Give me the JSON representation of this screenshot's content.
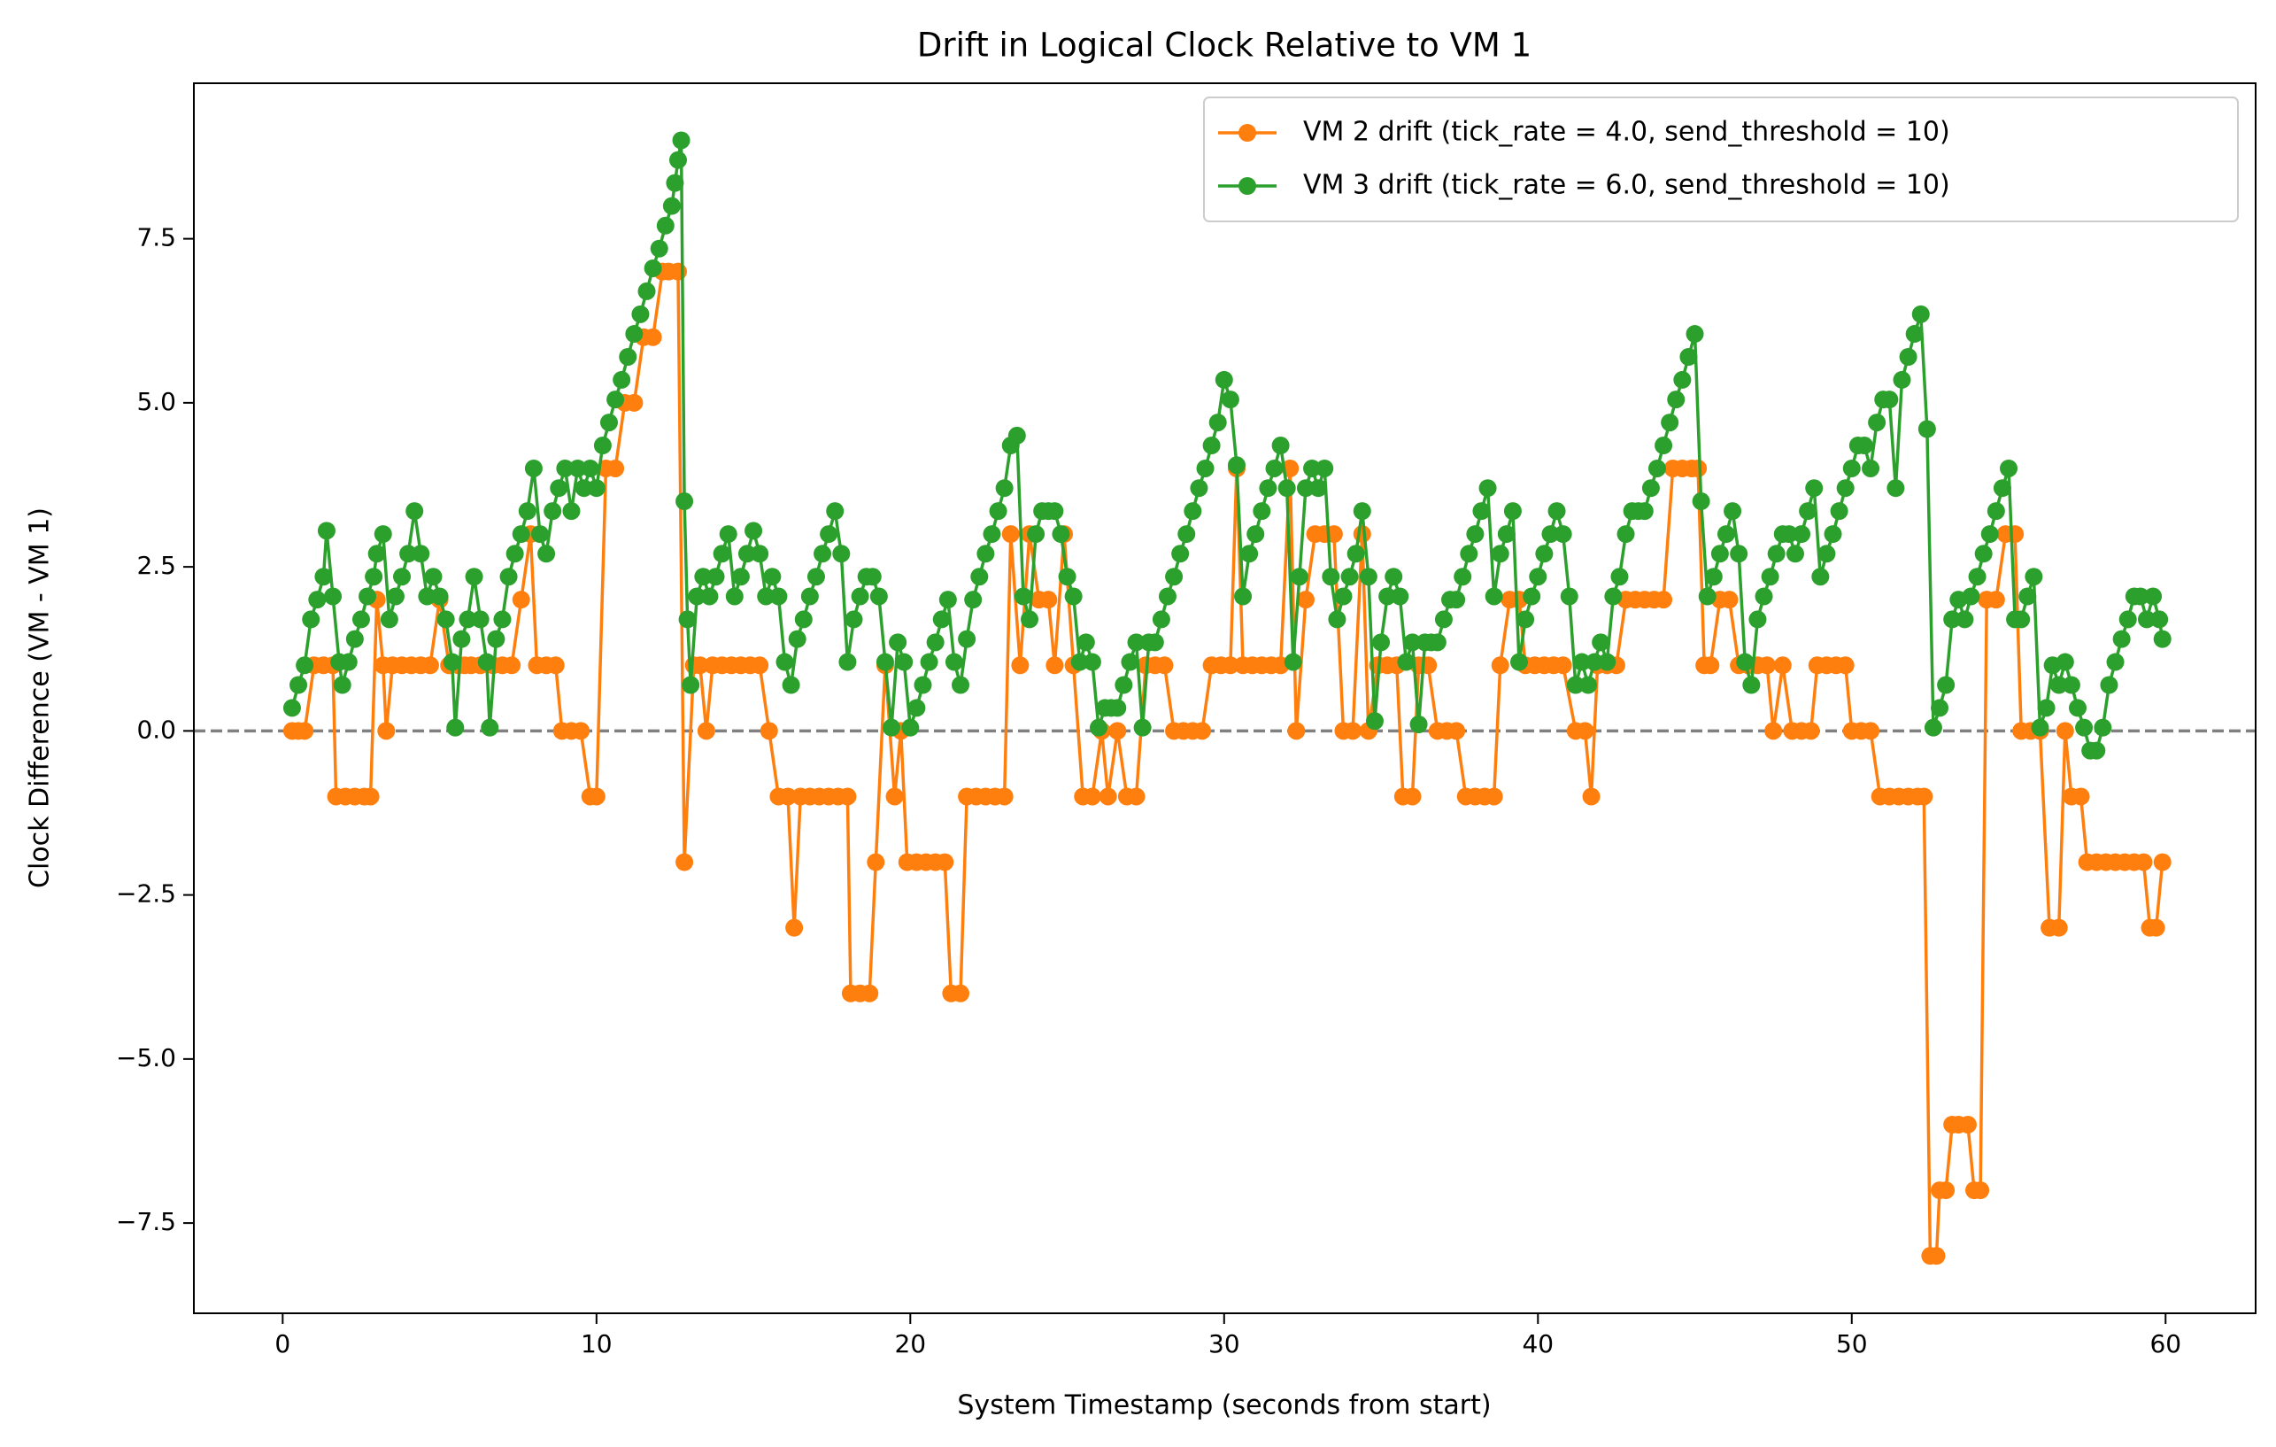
{
  "chart_data": {
    "type": "line",
    "title": "Drift in Logical Clock Relative to VM 1",
    "x_label": "System Timestamp (seconds from start)",
    "y_label": "Clock Difference (VM - VM 1)",
    "xlim": [
      -2.83,
      62.87
    ],
    "ylim": [
      -8.875,
      9.87
    ],
    "xticks": [
      0,
      10,
      20,
      30,
      40,
      50,
      60
    ],
    "yticks": [
      {
        "value": -7.5,
        "label": "−7.5"
      },
      {
        "value": -5,
        "label": "−5.0"
      },
      {
        "value": -2.5,
        "label": "−2.5"
      },
      {
        "value": 0,
        "label": "0.0"
      },
      2.5,
      {
        "value": 5,
        "label": "5.0"
      },
      7.5
    ],
    "legend": "upper right",
    "reference_line": {
      "y": 0,
      "color": "#808080",
      "style": "dashed"
    },
    "series": [
      {
        "name": "VM 2 drift (tick_rate = 4.0, send_threshold = 10)",
        "color": "#ff7f0e",
        "x": [
          0.3,
          0.5,
          0.7,
          1.0,
          1.3,
          1.6,
          1.7,
          2.0,
          2.3,
          2.6,
          2.8,
          3.0,
          3.2,
          3.3,
          3.5,
          3.8,
          4.1,
          4.4,
          4.7,
          5.0,
          5.3,
          5.6,
          5.8,
          6.0,
          6.3,
          6.7,
          7.0,
          7.3,
          7.6,
          7.9,
          8.1,
          8.4,
          8.7,
          8.9,
          9.2,
          9.5,
          9.8,
          10.0,
          10.3,
          10.6,
          10.9,
          11.2,
          11.5,
          11.8,
          12.1,
          12.3,
          12.6,
          12.8,
          13.1,
          13.3,
          13.5,
          13.7,
          14.0,
          14.3,
          14.6,
          14.9,
          15.2,
          15.5,
          15.8,
          16.1,
          16.3,
          16.5,
          16.8,
          17.1,
          17.4,
          17.7,
          18.0,
          18.1,
          18.4,
          18.7,
          18.9,
          19.2,
          19.5,
          19.7,
          19.9,
          20.2,
          20.5,
          20.8,
          21.1,
          21.3,
          21.6,
          21.8,
          22.1,
          22.4,
          22.7,
          23.0,
          23.2,
          23.5,
          23.8,
          24.1,
          24.4,
          24.6,
          24.9,
          25.2,
          25.5,
          25.8,
          26.1,
          26.3,
          26.6,
          26.9,
          27.2,
          27.5,
          27.8,
          28.1,
          28.4,
          28.7,
          29.0,
          29.3,
          29.6,
          29.9,
          30.2,
          30.4,
          30.6,
          30.9,
          31.2,
          31.5,
          31.8,
          32.1,
          32.3,
          32.6,
          32.9,
          33.2,
          33.5,
          33.8,
          34.1,
          34.4,
          34.6,
          34.9,
          35.2,
          35.5,
          35.7,
          36.0,
          36.2,
          36.5,
          36.8,
          37.1,
          37.4,
          37.7,
          38.0,
          38.3,
          38.6,
          38.8,
          39.1,
          39.4,
          39.6,
          39.9,
          40.2,
          40.5,
          40.8,
          41.2,
          41.5,
          41.7,
          41.9,
          42.2,
          42.5,
          42.8,
          43.1,
          43.4,
          43.7,
          44.0,
          44.3,
          44.6,
          44.9,
          45.1,
          45.3,
          45.5,
          45.8,
          46.1,
          46.4,
          46.7,
          47.0,
          47.3,
          47.5,
          47.8,
          48.1,
          48.4,
          48.7,
          48.9,
          49.2,
          49.5,
          49.8,
          50.0,
          50.3,
          50.6,
          50.9,
          51.2,
          51.5,
          51.8,
          52.1,
          52.3,
          52.5,
          52.7,
          52.8,
          53.0,
          53.2,
          53.4,
          53.7,
          53.9,
          54.1,
          54.3,
          54.6,
          54.9,
          55.2,
          55.4,
          55.7,
          56.0,
          56.3,
          56.6,
          56.8,
          57.0,
          57.3,
          57.5,
          57.8,
          58.1,
          58.4,
          58.7,
          59.0,
          59.3,
          59.5,
          59.7,
          59.9
        ],
        "values": [
          0,
          0,
          0,
          1,
          1,
          1,
          -1,
          -1,
          -1,
          -1,
          -1,
          2,
          1,
          0,
          1,
          1,
          1,
          1,
          1,
          2,
          1,
          1,
          1,
          1,
          1,
          1,
          1,
          1,
          2,
          3,
          1,
          1,
          1,
          0,
          0,
          0,
          -1,
          -1,
          4,
          4,
          5,
          5,
          6,
          6,
          7,
          7,
          7,
          -2,
          1,
          1,
          0,
          1,
          1,
          1,
          1,
          1,
          1,
          0,
          -1,
          -1,
          -3,
          -1,
          -1,
          -1,
          -1,
          -1,
          -1,
          -4,
          -4,
          -4,
          -2,
          1,
          -1,
          0,
          -2,
          -2,
          -2,
          -2,
          -2,
          -4,
          -4,
          -1,
          -1,
          -1,
          -1,
          -1,
          3,
          1,
          3,
          2,
          2,
          1,
          3,
          1,
          -1,
          -1,
          0,
          -1,
          0,
          -1,
          -1,
          1,
          1,
          1,
          0,
          0,
          0,
          0,
          1,
          1,
          1,
          4,
          1,
          1,
          1,
          1,
          1,
          4,
          0,
          2,
          3,
          3,
          3,
          0,
          0,
          3,
          0,
          1,
          1,
          1,
          -1,
          -1,
          1,
          1,
          0,
          0,
          0,
          -1,
          -1,
          -1,
          -1,
          1,
          2,
          2,
          1,
          1,
          1,
          1,
          1,
          0,
          0,
          -1,
          1,
          1,
          1,
          2,
          2,
          2,
          2,
          2,
          4,
          4,
          4,
          4,
          1,
          1,
          2,
          2,
          1,
          1,
          1,
          1,
          0,
          1,
          0,
          0,
          0,
          1,
          1,
          1,
          1,
          0,
          0,
          0,
          -1,
          -1,
          -1,
          -1,
          -1,
          -1,
          -8,
          -8,
          -7,
          -7,
          -6,
          -6,
          -6,
          -7,
          -7,
          2,
          2,
          3,
          3,
          0,
          0,
          0,
          -3,
          -3,
          0,
          -1,
          -1,
          -2,
          -2,
          -2,
          -2,
          -2,
          -2,
          -2,
          -3,
          -3,
          -2
        ]
      },
      {
        "name": "VM 3 drift (tick_rate = 6.0, send_threshold = 10)",
        "color": "#2ca02c",
        "x": [
          0.3,
          0.5,
          0.7,
          0.9,
          1.1,
          1.3,
          1.4,
          1.6,
          1.8,
          1.9,
          2.1,
          2.3,
          2.5,
          2.7,
          2.9,
          3.0,
          3.2,
          3.4,
          3.6,
          3.8,
          4.0,
          4.2,
          4.4,
          4.6,
          4.8,
          5.0,
          5.2,
          5.4,
          5.5,
          5.7,
          5.9,
          6.1,
          6.3,
          6.5,
          6.6,
          6.8,
          7.0,
          7.2,
          7.4,
          7.6,
          7.8,
          8.0,
          8.2,
          8.4,
          8.6,
          8.8,
          9.0,
          9.2,
          9.4,
          9.6,
          9.8,
          10.0,
          10.2,
          10.4,
          10.6,
          10.8,
          11.0,
          11.2,
          11.4,
          11.6,
          11.8,
          12.0,
          12.2,
          12.4,
          12.5,
          12.6,
          12.7,
          12.8,
          12.9,
          13.0,
          13.2,
          13.4,
          13.6,
          13.8,
          14.0,
          14.2,
          14.4,
          14.6,
          14.8,
          15.0,
          15.2,
          15.4,
          15.6,
          15.8,
          16.0,
          16.2,
          16.4,
          16.6,
          16.8,
          17.0,
          17.2,
          17.4,
          17.6,
          17.8,
          18.0,
          18.2,
          18.4,
          18.6,
          18.8,
          19.0,
          19.2,
          19.4,
          19.6,
          19.8,
          20.0,
          20.2,
          20.4,
          20.6,
          20.8,
          21.0,
          21.2,
          21.4,
          21.6,
          21.8,
          22.0,
          22.2,
          22.4,
          22.6,
          22.8,
          23.0,
          23.2,
          23.4,
          23.6,
          23.8,
          24.0,
          24.2,
          24.4,
          24.6,
          24.8,
          25.0,
          25.2,
          25.4,
          25.6,
          25.8,
          26.0,
          26.2,
          26.4,
          26.6,
          26.8,
          27.0,
          27.2,
          27.4,
          27.6,
          27.8,
          28.0,
          28.2,
          28.4,
          28.6,
          28.8,
          29.0,
          29.2,
          29.4,
          29.6,
          29.8,
          30.0,
          30.2,
          30.4,
          30.6,
          30.8,
          31.0,
          31.2,
          31.4,
          31.6,
          31.8,
          32.0,
          32.2,
          32.4,
          32.6,
          32.8,
          33.0,
          33.2,
          33.4,
          33.6,
          33.8,
          34.0,
          34.2,
          34.4,
          34.6,
          34.8,
          35.0,
          35.2,
          35.4,
          35.6,
          35.8,
          36.0,
          36.2,
          36.4,
          36.6,
          36.8,
          37.0,
          37.2,
          37.4,
          37.6,
          37.8,
          38.0,
          38.2,
          38.4,
          38.6,
          38.8,
          39.0,
          39.2,
          39.4,
          39.6,
          39.8,
          40.0,
          40.2,
          40.4,
          40.6,
          40.8,
          41.0,
          41.2,
          41.4,
          41.6,
          41.8,
          42.0,
          42.2,
          42.4,
          42.6,
          42.8,
          43.0,
          43.2,
          43.4,
          43.6,
          43.8,
          44.0,
          44.2,
          44.4,
          44.6,
          44.8,
          45.0,
          45.2,
          45.4,
          45.6,
          45.8,
          46.0,
          46.2,
          46.4,
          46.6,
          46.8,
          47.0,
          47.2,
          47.4,
          47.6,
          47.8,
          48.0,
          48.2,
          48.4,
          48.6,
          48.8,
          49.0,
          49.2,
          49.4,
          49.6,
          49.8,
          50.0,
          50.2,
          50.4,
          50.6,
          50.8,
          51.0,
          51.2,
          51.4,
          51.6,
          51.8,
          52.0,
          52.2,
          52.4,
          52.6,
          52.8,
          53.0,
          53.2,
          53.4,
          53.6,
          53.8,
          54.0,
          54.2,
          54.4,
          54.6,
          54.8,
          55.0,
          55.2,
          55.4,
          55.6,
          55.8,
          56.0,
          56.2,
          56.4,
          56.6,
          56.8,
          57.0,
          57.2,
          57.4,
          57.6,
          57.8,
          58.0,
          58.2,
          58.4,
          58.6,
          58.8,
          59.0,
          59.2,
          59.4,
          59.6,
          59.8,
          59.9
        ],
        "values": [
          0.35,
          0.7,
          1.0,
          1.7,
          2.0,
          2.35,
          3.05,
          2.05,
          1.05,
          0.7,
          1.05,
          1.4,
          1.7,
          2.05,
          2.35,
          2.7,
          3.0,
          1.7,
          2.05,
          2.35,
          2.7,
          3.35,
          2.7,
          2.05,
          2.35,
          2.05,
          1.7,
          1.05,
          0.05,
          1.4,
          1.7,
          2.35,
          1.7,
          1.05,
          0.05,
          1.4,
          1.7,
          2.35,
          2.7,
          3.0,
          3.35,
          4.0,
          3.0,
          2.7,
          3.35,
          3.7,
          4.0,
          3.35,
          4.0,
          3.7,
          4.0,
          3.7,
          4.35,
          4.7,
          5.05,
          5.35,
          5.7,
          6.05,
          6.35,
          6.7,
          7.05,
          7.35,
          7.7,
          8.0,
          8.35,
          8.7,
          9.0,
          3.5,
          1.7,
          0.7,
          2.05,
          2.35,
          2.05,
          2.35,
          2.7,
          3.0,
          2.05,
          2.35,
          2.7,
          3.05,
          2.7,
          2.05,
          2.35,
          2.05,
          1.05,
          0.7,
          1.4,
          1.7,
          2.05,
          2.35,
          2.7,
          3.0,
          3.35,
          2.7,
          1.05,
          1.7,
          2.05,
          2.35,
          2.35,
          2.05,
          1.05,
          0.05,
          1.35,
          1.05,
          0.05,
          0.35,
          0.7,
          1.05,
          1.35,
          1.7,
          2.0,
          1.05,
          0.7,
          1.4,
          2.0,
          2.35,
          2.7,
          3.0,
          3.35,
          3.7,
          4.35,
          4.5,
          2.05,
          1.7,
          3.0,
          3.35,
          3.35,
          3.35,
          3.0,
          2.35,
          2.05,
          1.05,
          1.35,
          1.05,
          0.05,
          0.35,
          0.35,
          0.35,
          0.7,
          1.05,
          1.35,
          0.05,
          1.35,
          1.35,
          1.7,
          2.05,
          2.35,
          2.7,
          3.0,
          3.35,
          3.7,
          4.0,
          4.35,
          4.7,
          5.35,
          5.05,
          4.05,
          2.05,
          2.7,
          3.0,
          3.35,
          3.7,
          4.0,
          4.35,
          3.7,
          1.05,
          2.35,
          3.7,
          4.0,
          3.7,
          4.0,
          2.35,
          1.7,
          2.05,
          2.35,
          2.7,
          3.35,
          2.35,
          0.15,
          1.35,
          2.05,
          2.35,
          2.05,
          1.05,
          1.35,
          0.1,
          1.35,
          1.35,
          1.35,
          1.7,
          2.0,
          2.0,
          2.35,
          2.7,
          3.0,
          3.35,
          3.7,
          2.05,
          2.7,
          3.0,
          3.35,
          1.05,
          1.7,
          2.05,
          2.35,
          2.7,
          3.0,
          3.35,
          3.0,
          2.05,
          0.7,
          1.05,
          0.7,
          1.05,
          1.35,
          1.05,
          2.05,
          2.35,
          3.0,
          3.35,
          3.35,
          3.35,
          3.7,
          4.0,
          4.35,
          4.7,
          5.05,
          5.35,
          5.7,
          6.05,
          3.5,
          2.05,
          2.35,
          2.7,
          3.0,
          3.35,
          2.7,
          1.05,
          0.7,
          1.7,
          2.05,
          2.35,
          2.7,
          3.0,
          3.0,
          2.7,
          3.0,
          3.35,
          3.7,
          2.35,
          2.7,
          3.0,
          3.35,
          3.7,
          4.0,
          4.35,
          4.35,
          4.0,
          4.7,
          5.05,
          5.05,
          3.7,
          5.35,
          5.7,
          6.05,
          6.35,
          4.6,
          0.05,
          0.35,
          0.7,
          1.7,
          2.0,
          1.7,
          2.05,
          2.35,
          2.7,
          3.0,
          3.35,
          3.7,
          4.0,
          1.7,
          1.7,
          2.05,
          2.35,
          0.05,
          0.35,
          1.0,
          0.7,
          1.05,
          0.7,
          0.35,
          0.05,
          -0.3,
          -0.3,
          0.05,
          0.7,
          1.05,
          1.4,
          1.7,
          2.05,
          2.05,
          1.7,
          2.05,
          1.7,
          1.4
        ]
      }
    ]
  }
}
